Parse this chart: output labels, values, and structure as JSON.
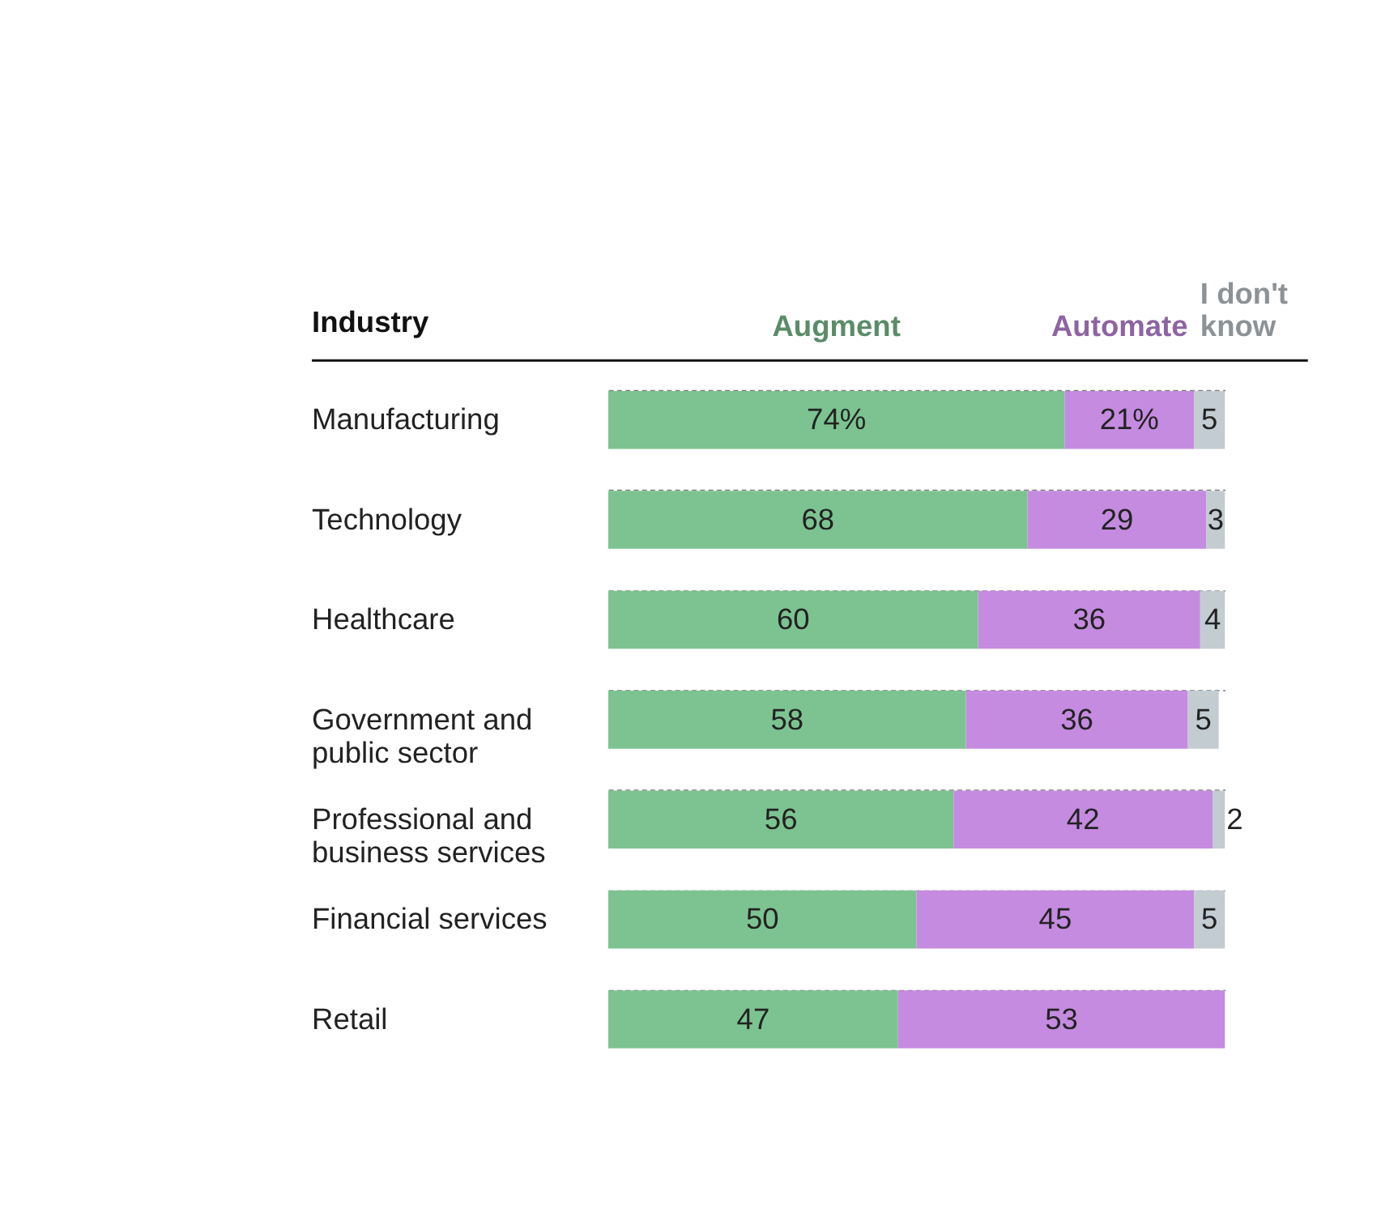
{
  "chart_data": {
    "type": "bar",
    "orientation": "horizontal",
    "stacked": true,
    "ylabel": "Industry",
    "categories": [
      "Manufacturing",
      "Technology",
      "Healthcare",
      "Government and public sector",
      "Professional and business services",
      "Financial services",
      "Retail"
    ],
    "series": [
      {
        "name": "Augment",
        "color": "#7dc391",
        "values": [
          74,
          68,
          60,
          58,
          56,
          50,
          47
        ],
        "value_labels": [
          "74%",
          "68",
          "60",
          "58",
          "56",
          "50",
          "47"
        ]
      },
      {
        "name": "Automate",
        "color": "#c58be0",
        "values": [
          21,
          29,
          36,
          36,
          42,
          45,
          53
        ],
        "value_labels": [
          "21%",
          "29",
          "36",
          "36",
          "42",
          "45",
          "53"
        ]
      },
      {
        "name": "I don't know",
        "color": "#c3ccd1",
        "values": [
          5,
          3,
          4,
          5,
          2,
          5,
          0
        ],
        "value_labels": [
          "5",
          "3",
          "4",
          "5",
          "2",
          "5",
          null
        ]
      }
    ],
    "xlim": [
      0,
      100
    ],
    "tick_labels": "y",
    "grid": "y",
    "legend": "top"
  }
}
